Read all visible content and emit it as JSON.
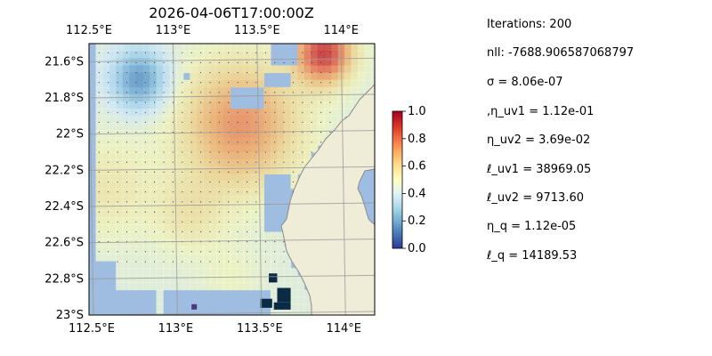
{
  "chart_data": [
    {
      "type": "heatmap",
      "title": "2026-04-06T17:00:00Z",
      "x_axis": {
        "range": [
          112.5,
          114.2
        ],
        "ticks": [
          112.5,
          113.0,
          113.5,
          114.0
        ],
        "tick_labels_top": [
          "112.5°E",
          "113°E",
          "113.5°E",
          "114°E"
        ],
        "tick_labels_bottom": [
          "112.5°E",
          "113°E",
          "113.5°E",
          "114°E"
        ]
      },
      "y_axis": {
        "range": [
          -23.0,
          -21.5
        ],
        "ticks": [
          -21.6,
          -21.8,
          -22.0,
          -22.2,
          -22.4,
          -22.6,
          -22.8,
          -23.0
        ],
        "tick_labels": [
          "21.6°S",
          "21.8°S",
          "22°S",
          "22.2°S",
          "22.4°S",
          "22.6°S",
          "22.8°S",
          "23°S"
        ]
      },
      "grid": true,
      "colormap": "RdYlBu_r",
      "field_summary": [
        {
          "region": "northeast near 113.9°E, 21.55°S",
          "value": 0.9
        },
        {
          "region": "central band 113.2°E–113.6°E, 21.7°S–22.2°S",
          "value": 0.65
        },
        {
          "region": "western edge 112.6°E, 22.0°S–22.6°S",
          "value": 0.55
        },
        {
          "region": "south-central 113.1°E, 22.3°S–22.6°S",
          "value": 0.45
        },
        {
          "region": "patches near 112.8°E, 21.7°S",
          "value": 0.35
        },
        {
          "region": "far south 113.2°E–113.5°E, 22.7°S–22.9°S",
          "value": 0.4
        }
      ],
      "colors": {
        "ocean": "#9ebde0",
        "land": "#efedd8",
        "coast": "#8a8a8a",
        "dark_cells": "#0b2b45"
      }
    },
    {
      "type": "colorbar",
      "range": [
        0.0,
        1.0
      ],
      "ticks": [
        0.0,
        0.2,
        0.4,
        0.6,
        0.8,
        1.0
      ],
      "tick_labels": [
        "0.0",
        "0.2",
        "0.4",
        "0.6",
        "0.8",
        "1.0"
      ],
      "colormap": "RdYlBu_r"
    }
  ],
  "params": [
    "Iterations: 200",
    "nll: -7688.906587068797",
    "σ = 8.06e-07",
    ",η_uv1 = 1.12e-01",
    "η_uv2 = 3.69e-02",
    "ℓ_uv1 = 38969.05",
    "ℓ_uv2 = 9713.60",
    "η_q = 1.12e-05",
    "ℓ_q = 14189.53"
  ]
}
